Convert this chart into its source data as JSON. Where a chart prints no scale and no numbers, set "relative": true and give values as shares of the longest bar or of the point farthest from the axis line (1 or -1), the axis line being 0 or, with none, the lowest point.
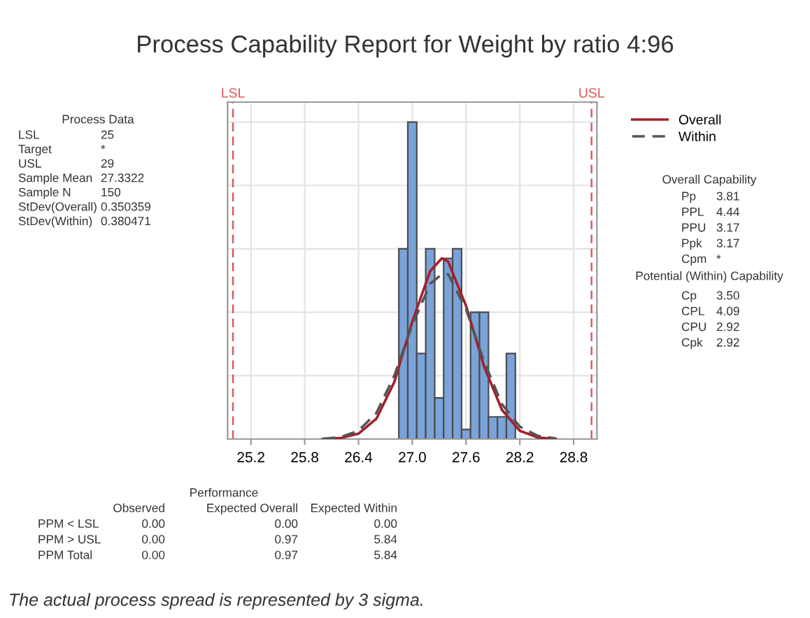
{
  "chart_data": {
    "type": "histogram",
    "title": "Process Capability Report for Weight by ratio 4:96",
    "relative": true,
    "bins": [
      26.85,
      26.95,
      27.05,
      27.15,
      27.25,
      27.35,
      27.45,
      27.55,
      27.65,
      27.75,
      27.85,
      27.95,
      28.05,
      28.15
    ],
    "values": [
      0.6,
      1,
      0.27,
      0.6,
      0.13,
      0.57,
      0.6,
      0.03,
      0.4,
      0.4,
      0.07,
      0.07,
      0.27
    ],
    "color": "#7aa3d9",
    "series": [
      {
        "name": "Overall",
        "type": "line",
        "color": "#a3202c",
        "line_style": "solid",
        "x": [
          26.0,
          26.2,
          26.4,
          26.6,
          26.8,
          27.0,
          27.2,
          27.33,
          27.4,
          27.6,
          27.8,
          28.0,
          28.2,
          28.4,
          28.6
        ],
        "values": [
          0,
          0.003,
          0.017,
          0.064,
          0.18,
          0.37,
          0.53,
          0.57,
          0.56,
          0.42,
          0.23,
          0.092,
          0.026,
          0.005,
          0
        ]
      },
      {
        "name": "Within",
        "type": "line",
        "color": "#555555",
        "line_style": "dashed",
        "x": [
          26.0,
          26.2,
          26.4,
          26.6,
          26.8,
          27.0,
          27.2,
          27.33,
          27.4,
          27.6,
          27.8,
          28.0,
          28.2,
          28.4,
          28.6
        ],
        "values": [
          0.001,
          0.006,
          0.026,
          0.082,
          0.2,
          0.36,
          0.49,
          0.52,
          0.52,
          0.41,
          0.245,
          0.11,
          0.039,
          0.01,
          0.002
        ]
      }
    ],
    "xlim": [
      24.94,
      29.06
    ],
    "xticks": [
      25.2,
      25.8,
      26.4,
      {
        "value": 27,
        "label": "27.0"
      },
      27.6,
      28.2,
      28.8
    ],
    "grid": true,
    "legend": "right",
    "ref_lines": [
      {
        "axis": "x",
        "value": 25,
        "label": "LSL",
        "color": "#e05a5a",
        "line_style": "dashed"
      },
      {
        "axis": "x",
        "value": 29,
        "label": "USL",
        "color": "#e05a5a",
        "line_style": "dashed"
      }
    ],
    "annotations": [
      "Process Data",
      "LSL\t25",
      "Target\t*",
      "USL\t29",
      "Sample Mean\t27.3322",
      "Sample N\t150",
      "StDev(Overall)\t0.350359",
      "StDev(Within)\t0.380471",
      "Overall Capability",
      "Pp\t3.81",
      "PPL\t4.44",
      "PPU\t3.17",
      "Ppk\t3.17",
      "Cpm\t*",
      "Potential (Within) Capability",
      "Cp\t3.50",
      "CPL\t4.09",
      "CPU\t2.92",
      "Cpk\t2.92",
      "Performance",
      "\tObserved\tExpected Overall\tExpected Within",
      "PPM < LSL\t0.00\t0.00\t0.00",
      "PPM > USL\t0.00\t0.97\t5.84",
      "PPM Total\t0.00\t0.97\t5.84",
      "The actual process spread is represented by 3 sigma."
    ]
  }
}
